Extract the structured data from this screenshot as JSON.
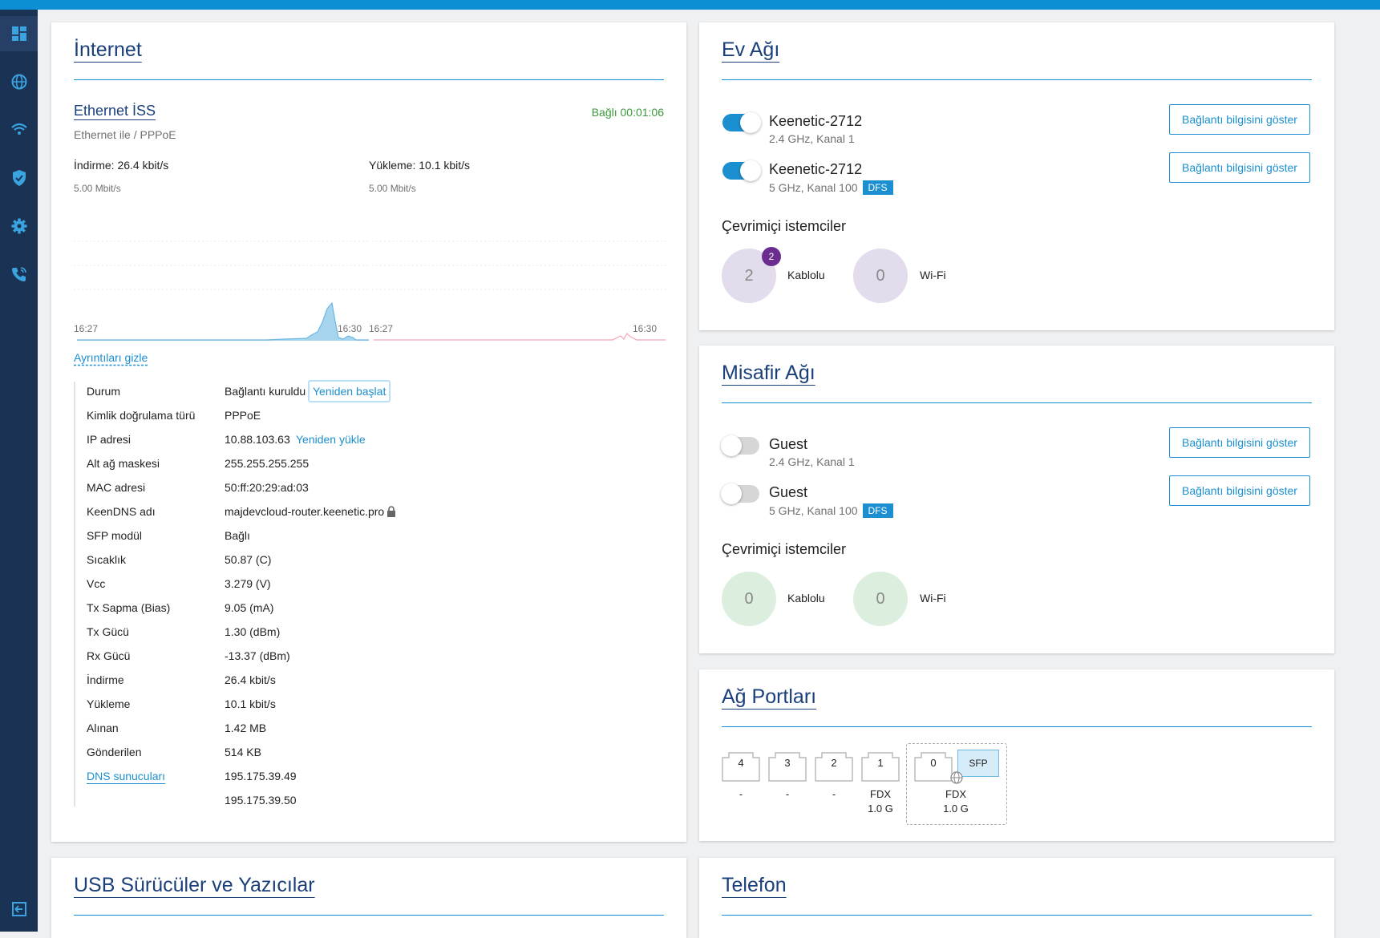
{
  "sidebar": {
    "items": [
      {
        "icon": "dashboard-icon",
        "active": true
      },
      {
        "icon": "globe-icon"
      },
      {
        "icon": "wifi-icon"
      },
      {
        "icon": "shield-icon"
      },
      {
        "icon": "gear-icon"
      },
      {
        "icon": "phone-icon"
      },
      {
        "icon": "logout-icon"
      }
    ]
  },
  "internet": {
    "title": "İnternet",
    "iss_title": "Ethernet İSS",
    "iss_sub": "Ethernet ile / PPPoE",
    "status": "Bağlı 00:01:06",
    "download_label": "İndirme: 26.4 kbit/s",
    "upload_label": "Yükleme: 10.1 kbit/s",
    "download_scale": "5.00 Mbit/s",
    "upload_scale": "5.00 Mbit/s",
    "download_times": [
      "16:27",
      "16:30"
    ],
    "upload_times": [
      "16:27",
      "16:30"
    ],
    "details_link": "Ayrıntıları gizle",
    "details": [
      {
        "label": "Durum",
        "value": "Bağlantı kuruldu",
        "action": "Yeniden başlat"
      },
      {
        "label": "Kimlik doğrulama türü",
        "value": "PPPoE"
      },
      {
        "label": "IP adresi",
        "value": "10.88.103.63",
        "action": "Yeniden yükle"
      },
      {
        "label": "Alt ağ maskesi",
        "value": "255.255.255.255"
      },
      {
        "label": "MAC adresi",
        "value": "50:ff:20:29:ad:03"
      },
      {
        "label": "KeenDNS adı",
        "value": "majdevcloud-router.keenetic.pro"
      },
      {
        "label": "SFP modül",
        "value": "Bağlı"
      },
      {
        "label": "Sıcaklık",
        "value": "50.87 (C)"
      },
      {
        "label": "Vcc",
        "value": "3.279 (V)"
      },
      {
        "label": "Tx Sapma (Bias)",
        "value": "9.05 (mA)"
      },
      {
        "label": "Tx Gücü",
        "value": "1.30 (dBm)"
      },
      {
        "label": "Rx Gücü",
        "value": "-13.37 (dBm)"
      },
      {
        "label": "İndirme",
        "value": "26.4 kbit/s"
      },
      {
        "label": "Yükleme",
        "value": "10.1 kbit/s"
      },
      {
        "label": "Alınan",
        "value": "1.42 MB"
      },
      {
        "label": "Gönderilen",
        "value": "514 KB"
      },
      {
        "label": "DNS sunucuları",
        "value": "195.175.39.49"
      },
      {
        "label": "",
        "value": "195.175.39.50"
      }
    ]
  },
  "home": {
    "title": "Ev Ağı",
    "networks": [
      {
        "ssid": "Keenetic-2712",
        "sub": "2.4 GHz, Kanal 1",
        "on": true,
        "button": "Bağlantı bilgisini göster"
      },
      {
        "ssid": "Keenetic-2712",
        "sub": "5 GHz, Kanal 100",
        "dfs": "DFS",
        "on": true,
        "button": "Bağlantı bilgisini göster"
      }
    ],
    "clients_title": "Çevrimiçi istemciler",
    "wired_count": "2",
    "wired_badge": "2",
    "wired_label": "Kablolu",
    "wifi_count": "0",
    "wifi_label": "Wi-Fi"
  },
  "guest": {
    "title": "Misafir Ağı",
    "networks": [
      {
        "ssid": "Guest",
        "sub": "2.4 GHz, Kanal 1",
        "on": false,
        "button": "Bağlantı bilgisini göster"
      },
      {
        "ssid": "Guest",
        "sub": "5 GHz, Kanal 100",
        "dfs": "DFS",
        "on": false,
        "button": "Bağlantı bilgisini göster"
      }
    ],
    "clients_title": "Çevrimiçi istemciler",
    "wired_count": "0",
    "wired_label": "Kablolu",
    "wifi_count": "0",
    "wifi_label": "Wi-Fi"
  },
  "ports": {
    "title": "Ağ Portları",
    "items": [
      {
        "num": "4",
        "line1": "-",
        "line2": ""
      },
      {
        "num": "3",
        "line1": "-",
        "line2": ""
      },
      {
        "num": "2",
        "line1": "-",
        "line2": ""
      },
      {
        "num": "1",
        "line1": "FDX",
        "line2": "1.0 G"
      },
      {
        "num": "0",
        "line1": "FDX",
        "line2": "1.0 G"
      }
    ],
    "sfp_label": "SFP"
  },
  "usb": {
    "title": "USB Sürücüler ve Yazıcılar"
  },
  "phone": {
    "title": "Telefon"
  }
}
